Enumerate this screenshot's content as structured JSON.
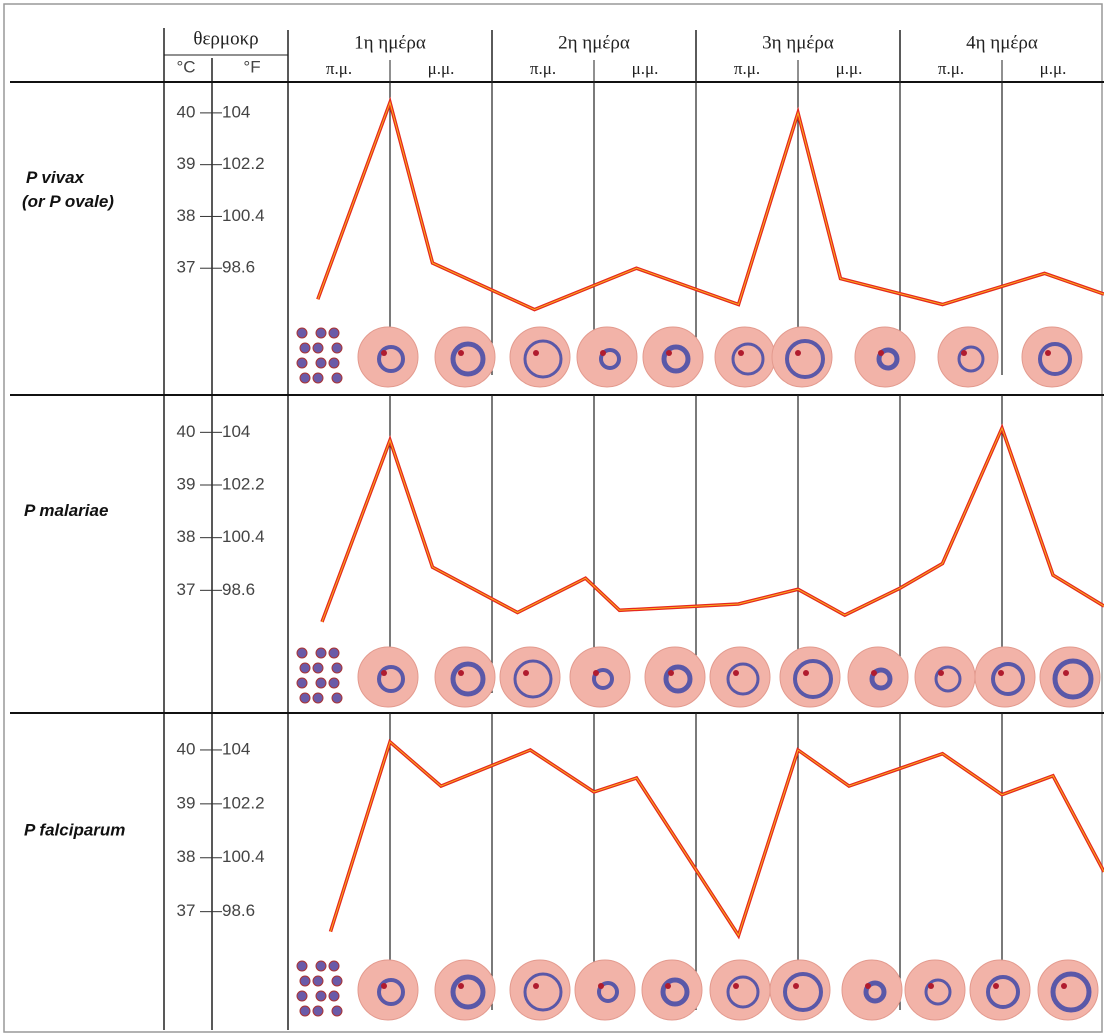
{
  "header": {
    "temp_label": "θερμοκρ",
    "c_unit": "°C",
    "f_unit": "°F",
    "days": [
      "1η ημέρα",
      "2η ημέρα",
      "3η ημέρα",
      "4η ημέρα"
    ],
    "periods": [
      "π.μ.",
      "μ.μ.",
      "π.μ.",
      "μ.μ.",
      "π.μ.",
      "μ.μ.",
      "π.μ.",
      "μ.μ."
    ]
  },
  "chart_data": [
    {
      "type": "line",
      "title": "P vivax",
      "subtitle": "(or P ovale)",
      "color": "#e5281f",
      "x": [
        3.5,
        12,
        17,
        29,
        41,
        53,
        60,
        65,
        77,
        89,
        96
      ],
      "values": [
        36.4,
        40.2,
        37.1,
        36.2,
        37.0,
        36.3,
        40.0,
        36.8,
        36.3,
        36.9,
        36.5
      ],
      "xlim": [
        0,
        96
      ],
      "xticks": [
        0,
        12,
        24,
        36,
        48,
        60,
        72,
        84
      ],
      "ylim": [
        36,
        40.5
      ],
      "yticks": [
        40,
        39,
        38,
        37
      ],
      "y2lim": [
        96.8,
        104.9
      ],
      "y2ticks": [
        104,
        102.2,
        100.4,
        98.6
      ],
      "grid": true
    },
    {
      "type": "line",
      "title": "P malariae",
      "color": "#e5281f",
      "x": [
        4,
        12,
        17,
        27,
        35,
        39,
        53,
        60,
        65.5,
        72,
        77,
        84,
        90,
        96
      ],
      "values": [
        36.4,
        39.85,
        37.44,
        36.58,
        37.23,
        36.62,
        36.74,
        37.02,
        36.53,
        37.04,
        37.51,
        40.08,
        37.29,
        36.7
      ],
      "xlim": [
        0,
        96
      ],
      "xticks": [
        0,
        12,
        24,
        36,
        48,
        60,
        72,
        84
      ],
      "ylim": [
        36,
        40.5
      ],
      "yticks": [
        40,
        39,
        38,
        37
      ],
      "y2lim": [
        96.8,
        104.9
      ],
      "y2ticks": [
        104,
        102.2,
        100.4,
        98.6
      ],
      "grid": true
    },
    {
      "type": "line",
      "title": "P falciparum",
      "color": "#e5281f",
      "x": [
        5,
        12,
        18,
        28.5,
        36,
        41,
        53,
        60,
        66,
        77,
        84,
        90,
        96
      ],
      "values": [
        36.63,
        40.15,
        39.33,
        40.0,
        39.22,
        39.48,
        36.56,
        40.0,
        39.33,
        39.93,
        39.17,
        39.52,
        37.74
      ],
      "xlim": [
        0,
        96
      ],
      "xticks": [
        0,
        12,
        24,
        36,
        48,
        60,
        72,
        84
      ],
      "ylim": [
        36.4,
        40.5
      ],
      "yticks": [
        40,
        39,
        38,
        37
      ],
      "y2lim": [
        97.52,
        104.9
      ],
      "y2ticks": [
        104,
        102.2,
        100.4,
        98.6
      ],
      "grid": true
    }
  ]
}
